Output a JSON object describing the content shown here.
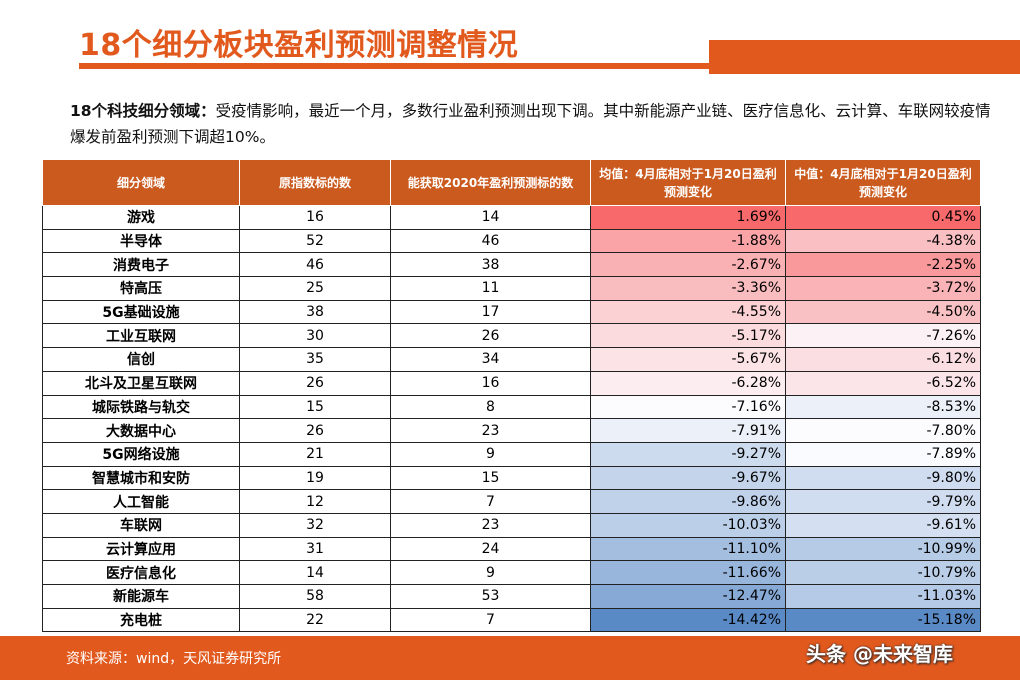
{
  "title": "18个细分板块盈利预测调整情况",
  "intro": {
    "lead": "18个科技细分领域：",
    "body": "受疫情影响，最近一个月，多数行业盈利预测出现下调。其中新能源产业链、医疗信息化、云计算、车联网较疫情爆发前盈利预测下调超10%。"
  },
  "table": {
    "headers": [
      "细分领域",
      "原指数标的数",
      "能获取2020年盈利预测标的数",
      "均值：4月底相对于1月20日盈利预测变化",
      "中值：4月底相对于1月20日盈利预测变化"
    ],
    "rows": [
      {
        "sector": "游戏",
        "total": "16",
        "with_forecast": "14",
        "mean": "1.69%",
        "median": "0.45%"
      },
      {
        "sector": "半导体",
        "total": "52",
        "with_forecast": "46",
        "mean": "-1.88%",
        "median": "-4.38%"
      },
      {
        "sector": "消费电子",
        "total": "46",
        "with_forecast": "38",
        "mean": "-2.67%",
        "median": "-2.25%"
      },
      {
        "sector": "特高压",
        "total": "25",
        "with_forecast": "11",
        "mean": "-3.36%",
        "median": "-3.72%"
      },
      {
        "sector": "5G基础设施",
        "total": "38",
        "with_forecast": "17",
        "mean": "-4.55%",
        "median": "-4.50%"
      },
      {
        "sector": "工业互联网",
        "total": "30",
        "with_forecast": "26",
        "mean": "-5.17%",
        "median": "-7.26%"
      },
      {
        "sector": "信创",
        "total": "35",
        "with_forecast": "34",
        "mean": "-5.67%",
        "median": "-6.12%"
      },
      {
        "sector": "北斗及卫星互联网",
        "total": "26",
        "with_forecast": "16",
        "mean": "-6.28%",
        "median": "-6.52%"
      },
      {
        "sector": "城际铁路与轨交",
        "total": "15",
        "with_forecast": "8",
        "mean": "-7.16%",
        "median": "-8.53%"
      },
      {
        "sector": "大数据中心",
        "total": "26",
        "with_forecast": "23",
        "mean": "-7.91%",
        "median": "-7.80%"
      },
      {
        "sector": "5G网络设施",
        "total": "21",
        "with_forecast": "9",
        "mean": "-9.27%",
        "median": "-7.89%"
      },
      {
        "sector": "智慧城市和安防",
        "total": "19",
        "with_forecast": "15",
        "mean": "-9.67%",
        "median": "-9.80%"
      },
      {
        "sector": "人工智能",
        "total": "12",
        "with_forecast": "7",
        "mean": "-9.86%",
        "median": "-9.79%"
      },
      {
        "sector": "车联网",
        "total": "32",
        "with_forecast": "23",
        "mean": "-10.03%",
        "median": "-9.61%"
      },
      {
        "sector": "云计算应用",
        "total": "31",
        "with_forecast": "24",
        "mean": "-11.10%",
        "median": "-10.99%"
      },
      {
        "sector": "医疗信息化",
        "total": "14",
        "with_forecast": "9",
        "mean": "-11.66%",
        "median": "-10.79%"
      },
      {
        "sector": "新能源车",
        "total": "58",
        "with_forecast": "53",
        "mean": "-12.47%",
        "median": "-11.03%"
      },
      {
        "sector": "充电桩",
        "total": "22",
        "with_forecast": "7",
        "mean": "-14.42%",
        "median": "-15.18%"
      }
    ]
  },
  "colors": {
    "accent": "#e2591e",
    "header_bg": "#cb5a1e",
    "heat_high": "#f8696b",
    "heat_mid": "#fcfcff",
    "heat_low": "#5a8ac6"
  },
  "footer": {
    "source": "资料来源：wind，天风证券研究所",
    "watermark": "头条 @未来智库"
  }
}
